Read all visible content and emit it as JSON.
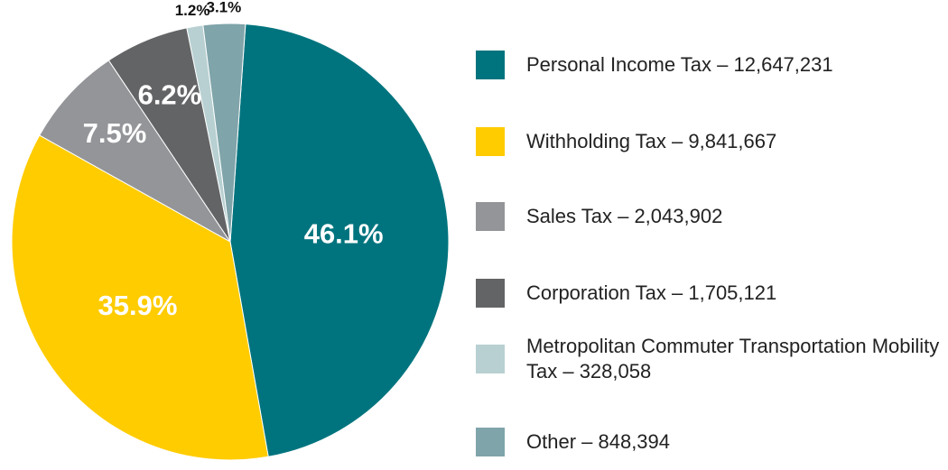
{
  "chart_data": {
    "type": "pie",
    "categories": [
      "Personal Income Tax – 12,647,231",
      "Withholding Tax – 9,841,667",
      "Sales Tax – 2,043,902",
      "Corporation Tax – 1,705,121",
      "Metropolitan Commuter Transportation Mobility Tax – 328,058",
      "Other – 848,394"
    ],
    "values": [
      46.1,
      35.9,
      7.5,
      6.2,
      1.2,
      3.1
    ],
    "value_labels": [
      "46.1%",
      "35.9%",
      "7.5%",
      "6.2%",
      "1.2%",
      "3.1%"
    ],
    "colors": [
      "#00747e",
      "#ffcc00",
      "#939598",
      "#636466",
      "#b8d0d2",
      "#7fa4aa"
    ],
    "legend": "right"
  }
}
